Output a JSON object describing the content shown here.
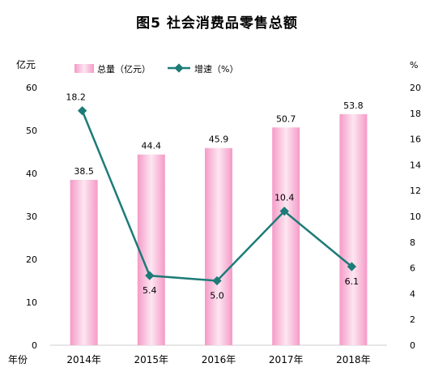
{
  "chart_data": {
    "type": "bar",
    "title": "图5    社会消费品零售总额",
    "categories": [
      "2014年",
      "2015年",
      "2016年",
      "2017年",
      "2018年"
    ],
    "xlabel": "年份",
    "ylabel_left": "亿元",
    "ylabel_right": "%",
    "ylim_left": [
      0,
      60
    ],
    "ylim_right": [
      0,
      20
    ],
    "yticks_left": [
      0,
      10,
      20,
      30,
      40,
      50,
      60
    ],
    "yticks_right": [
      0,
      2,
      4,
      6,
      8,
      10,
      12,
      14,
      16,
      18,
      20
    ],
    "series": [
      {
        "name": "总量（亿元）",
        "type": "bar",
        "axis": "left",
        "values": [
          38.5,
          44.4,
          45.9,
          50.7,
          53.8
        ],
        "labels": [
          "38.5",
          "44.4",
          "45.9",
          "50.7",
          "53.8"
        ]
      },
      {
        "name": "增速（%）",
        "type": "line",
        "axis": "right",
        "values": [
          18.2,
          5.4,
          5.0,
          10.4,
          6.1
        ],
        "labels": [
          "18.2",
          "5.4",
          "5.0",
          "10.4",
          "6.1"
        ]
      }
    ],
    "legend_position": "top",
    "grid": false,
    "colors": {
      "bar": "#f7a8cf",
      "bar_center": "#fde6f1",
      "line": "#1d7b78"
    }
  }
}
